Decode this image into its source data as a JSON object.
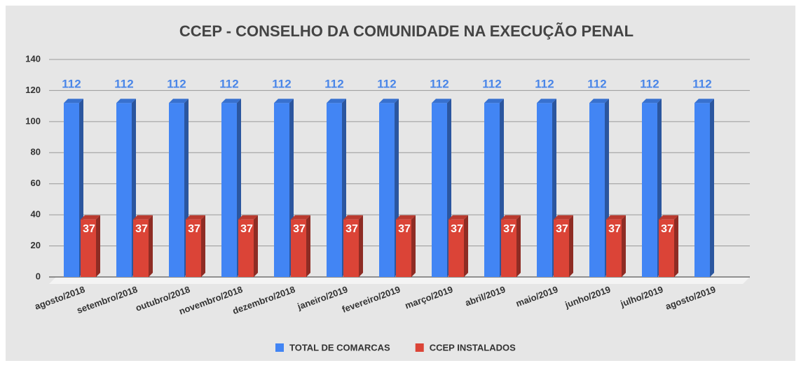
{
  "chart_data": {
    "type": "bar3d",
    "title": "CCEP - CONSELHO DA COMUNIDADE NA EXECUÇÃO PENAL",
    "categories": [
      "agosto/2018",
      "setembro/2018",
      "outubro/2018",
      "novembro/2018",
      "dezembro/2018",
      "janeiro/2019",
      "fevereiro/2019",
      "março/2019",
      "abril/2019",
      "maio/2019",
      "junho/2019",
      "julho/2019",
      "agosto/2019"
    ],
    "series": [
      {
        "name": "TOTAL DE COMARCAS",
        "color": "#4285f4",
        "values": [
          112,
          112,
          112,
          112,
          112,
          112,
          112,
          112,
          112,
          112,
          112,
          112,
          112
        ]
      },
      {
        "name": "CCEP INSTALADOS",
        "color": "#db4437",
        "values": [
          37,
          37,
          37,
          37,
          37,
          37,
          37,
          37,
          37,
          37,
          37,
          37,
          null
        ]
      }
    ],
    "ylim": [
      0,
      140
    ],
    "yticks": [
      0,
      20,
      40,
      60,
      80,
      100,
      120,
      140
    ],
    "grid": true,
    "legend": "bottom"
  }
}
